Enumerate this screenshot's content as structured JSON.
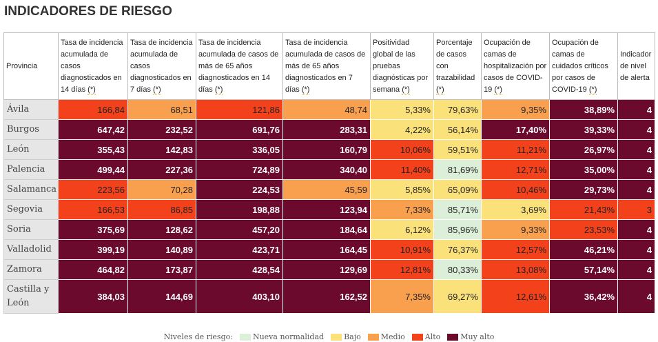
{
  "title": "INDICADORES DE RIESGO",
  "table": {
    "header": [
      {
        "text": "Provincia"
      },
      {
        "text": "Tasa de incidencia acumulada de casos diagnosticados en 14 días",
        "note": "(*)"
      },
      {
        "text": "Tasa de incidencia acumulada de casos diagnosticados en 7 días",
        "note": "(*)"
      },
      {
        "text": "Tasa de incidencia acumulada de casos de más de 65 años diagnosticados en 14 días",
        "note": "(*)"
      },
      {
        "text": "Tasa de incidencia acumulada de casos de más de 65 años diagnosticados en 7 días",
        "note": "(*)"
      },
      {
        "text": "Positividad global de las pruebas diagnósticas por semana",
        "note": "(*)"
      },
      {
        "text": "Porcentaje de casos con trazabilidad",
        "note": "(*)"
      },
      {
        "text": "Ocupación de camas de hospitalización por casos de COVID-19",
        "note": "(*)"
      },
      {
        "text": "Ocupación de camas de cuidados críticos por casos de COVID-19",
        "note": "(*)"
      },
      {
        "text": "Indicador de nivel de alerta"
      }
    ],
    "rows": [
      [
        "Ávila",
        "166,84",
        "68,51",
        "121,86",
        "48,74",
        "5,33%",
        "79,63%",
        "9,35%",
        "38,89%",
        "4"
      ],
      [
        "Burgos",
        "647,42",
        "232,52",
        "691,76",
        "283,31",
        "4,22%",
        "56,14%",
        "17,40%",
        "39,33%",
        "4"
      ],
      [
        "León",
        "355,43",
        "142,83",
        "336,05",
        "160,79",
        "10,06%",
        "59,51%",
        "11,21%",
        "26,97%",
        "4"
      ],
      [
        "Palencia",
        "499,44",
        "227,36",
        "724,89",
        "340,40",
        "11,40%",
        "81,69%",
        "12,71%",
        "35,00%",
        "4"
      ],
      [
        "Salamanca",
        "223,56",
        "70,28",
        "224,53",
        "45,59",
        "5,85%",
        "65,09%",
        "10,46%",
        "29,73%",
        "4"
      ],
      [
        "Segovia",
        "166,53",
        "86,85",
        "198,88",
        "123,94",
        "7,33%",
        "85,71%",
        "3,69%",
        "21,43%",
        "3"
      ],
      [
        "Soria",
        "375,69",
        "128,62",
        "457,20",
        "184,64",
        "6,12%",
        "85,96%",
        "9,33%",
        "23,53%",
        "4"
      ],
      [
        "Valladolid",
        "399,19",
        "140,89",
        "423,71",
        "164,45",
        "10,91%",
        "76,37%",
        "12,57%",
        "46,21%",
        "4"
      ],
      [
        "Zamora",
        "464,82",
        "173,87",
        "428,54",
        "129,69",
        "12,81%",
        "80,33%",
        "13,08%",
        "57,14%",
        "4"
      ],
      [
        "Castilla y León",
        "384,03",
        "144,69",
        "403,10",
        "162,52",
        "7,35%",
        "69,27%",
        "12,61%",
        "36,42%",
        "4"
      ]
    ],
    "cell_colors": [
      [
        "#f2411b",
        "#f9a04e",
        "#f2411b",
        "#f9a04e",
        "#fbe17a",
        "#fbe17a",
        "#f9a04e",
        "#6b0a2c",
        "#6b0a2c"
      ],
      [
        "#6b0a2c",
        "#6b0a2c",
        "#6b0a2c",
        "#6b0a2c",
        "#fbe17a",
        "#fbe17a",
        "#6b0a2c",
        "#6b0a2c",
        "#6b0a2c"
      ],
      [
        "#6b0a2c",
        "#6b0a2c",
        "#6b0a2c",
        "#6b0a2c",
        "#f2411b",
        "#fbe17a",
        "#f2411b",
        "#6b0a2c",
        "#6b0a2c"
      ],
      [
        "#6b0a2c",
        "#6b0a2c",
        "#6b0a2c",
        "#6b0a2c",
        "#f2411b",
        "#dcefd8",
        "#f2411b",
        "#6b0a2c",
        "#6b0a2c"
      ],
      [
        "#f2411b",
        "#f9a04e",
        "#6b0a2c",
        "#f9a04e",
        "#fbe17a",
        "#fbe17a",
        "#f2411b",
        "#6b0a2c",
        "#6b0a2c"
      ],
      [
        "#f2411b",
        "#f2411b",
        "#6b0a2c",
        "#6b0a2c",
        "#f9a04e",
        "#dcefd8",
        "#fbe17a",
        "#f2411b",
        "#f2411b"
      ],
      [
        "#6b0a2c",
        "#6b0a2c",
        "#6b0a2c",
        "#6b0a2c",
        "#fbe17a",
        "#dcefd8",
        "#f9a04e",
        "#f2411b",
        "#6b0a2c"
      ],
      [
        "#6b0a2c",
        "#6b0a2c",
        "#6b0a2c",
        "#6b0a2c",
        "#f2411b",
        "#fbe17a",
        "#f2411b",
        "#6b0a2c",
        "#6b0a2c"
      ],
      [
        "#6b0a2c",
        "#6b0a2c",
        "#6b0a2c",
        "#6b0a2c",
        "#f2411b",
        "#dcefd8",
        "#f2411b",
        "#6b0a2c",
        "#6b0a2c"
      ],
      [
        "#6b0a2c",
        "#6b0a2c",
        "#6b0a2c",
        "#6b0a2c",
        "#f9a04e",
        "#fbe17a",
        "#f2411b",
        "#6b0a2c",
        "#6b0a2c"
      ]
    ]
  },
  "legend": {
    "title": "Niveles de riesgo:",
    "items": [
      {
        "label": "Nueva normalidad",
        "color": "#dcefd8"
      },
      {
        "label": "Bajo",
        "color": "#fbe17a"
      },
      {
        "label": "Medio",
        "color": "#f9a04e"
      },
      {
        "label": "Alto",
        "color": "#f2411b"
      },
      {
        "label": "Muy alto",
        "color": "#6b0a2c"
      }
    ]
  }
}
